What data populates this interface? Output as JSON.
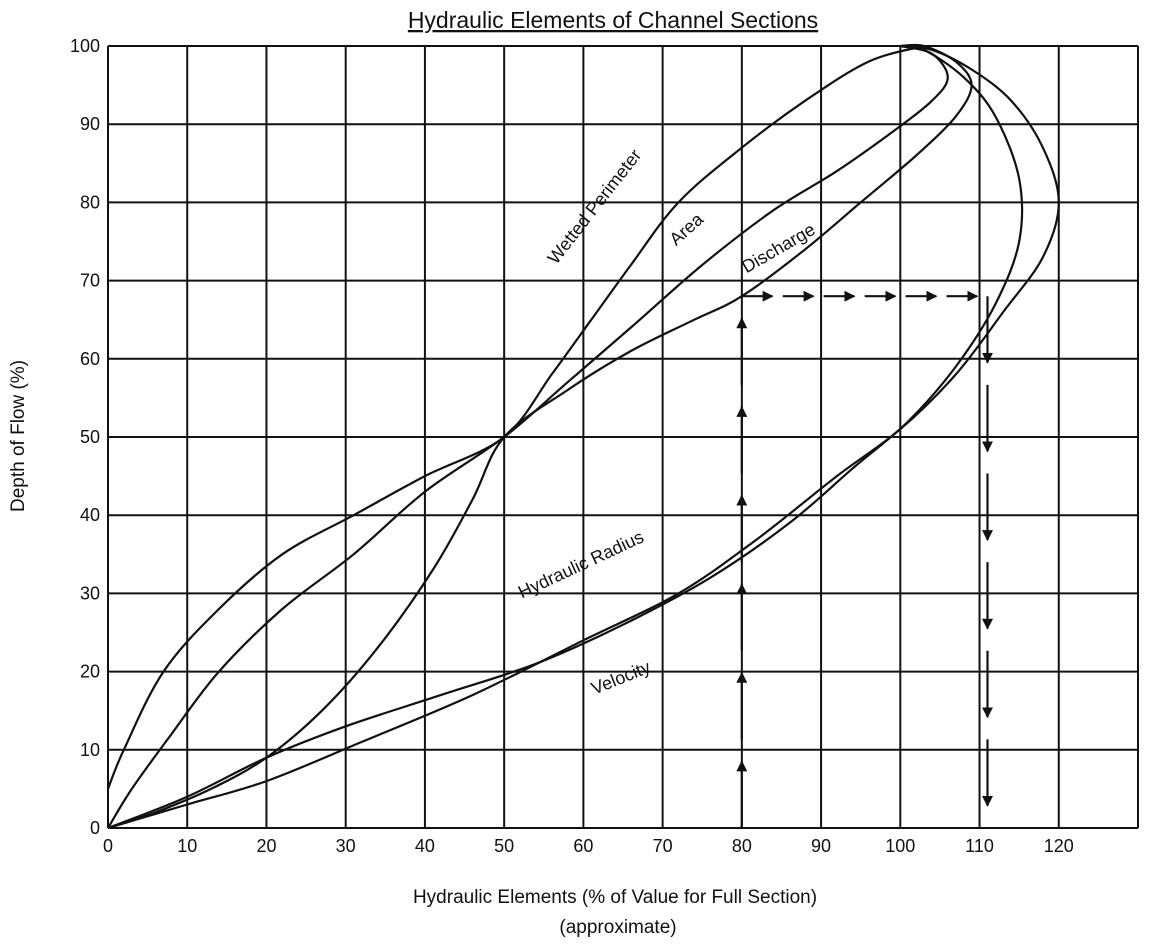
{
  "chart_data": {
    "type": "line",
    "title": "Hydraulic Elements of Channel Sections",
    "xlabel": "Hydraulic Elements (% of Value for Full Section)",
    "xlabel_note": "(approximate)",
    "ylabel": "Depth of Flow (%)",
    "xlim": [
      0,
      130
    ],
    "ylim": [
      0,
      100
    ],
    "x_ticks": [
      0,
      10,
      20,
      30,
      40,
      50,
      60,
      70,
      80,
      90,
      100,
      110,
      120
    ],
    "y_ticks": [
      0,
      10,
      20,
      30,
      40,
      50,
      60,
      70,
      80,
      90,
      100
    ],
    "grid": true,
    "series": [
      {
        "name": "Wetted Perimeter",
        "points": [
          [
            0,
            5
          ],
          [
            2,
            10
          ],
          [
            7,
            20
          ],
          [
            14,
            28
          ],
          [
            22,
            35
          ],
          [
            31,
            40
          ],
          [
            40,
            45
          ],
          [
            50,
            50
          ],
          [
            56,
            58
          ],
          [
            61,
            65
          ],
          [
            66,
            72
          ],
          [
            72,
            80
          ],
          [
            80,
            87
          ],
          [
            88,
            93
          ],
          [
            96,
            98
          ],
          [
            103,
            100
          ]
        ]
      },
      {
        "name": "Area",
        "points": [
          [
            0,
            0
          ],
          [
            3,
            5
          ],
          [
            8,
            12
          ],
          [
            14,
            20
          ],
          [
            22,
            28
          ],
          [
            31,
            35
          ],
          [
            40,
            43
          ],
          [
            50,
            50
          ],
          [
            58,
            57
          ],
          [
            66,
            64
          ],
          [
            75,
            72
          ],
          [
            84,
            79
          ],
          [
            92,
            84
          ],
          [
            99,
            89
          ],
          [
            104,
            93
          ],
          [
            106,
            96
          ],
          [
            104,
            99
          ],
          [
            100,
            100
          ]
        ]
      },
      {
        "name": "Discharge",
        "points": [
          [
            0,
            0
          ],
          [
            6,
            2
          ],
          [
            13,
            5
          ],
          [
            20,
            9
          ],
          [
            27,
            15
          ],
          [
            34,
            23
          ],
          [
            41,
            33
          ],
          [
            46,
            42
          ],
          [
            50,
            50
          ],
          [
            58,
            56
          ],
          [
            66,
            61
          ],
          [
            74,
            65
          ],
          [
            80,
            68
          ],
          [
            88,
            74
          ],
          [
            95,
            80
          ],
          [
            102,
            86
          ],
          [
            107,
            91
          ],
          [
            109,
            95
          ],
          [
            107,
            98
          ],
          [
            103,
            100
          ],
          [
            100,
            100
          ]
        ]
      },
      {
        "name": "Hydraulic Radius",
        "points": [
          [
            0,
            0
          ],
          [
            10,
            3
          ],
          [
            20,
            6
          ],
          [
            32,
            11
          ],
          [
            46,
            17
          ],
          [
            60,
            24
          ],
          [
            72,
            30
          ],
          [
            82,
            37
          ],
          [
            92,
            45
          ],
          [
            100,
            51
          ],
          [
            107,
            58
          ],
          [
            113,
            66
          ],
          [
            118,
            73
          ],
          [
            120,
            80
          ],
          [
            118,
            87
          ],
          [
            114,
            93
          ],
          [
            109,
            97
          ],
          [
            104,
            99.5
          ],
          [
            100,
            100
          ]
        ]
      },
      {
        "name": "Velocity",
        "points": [
          [
            0,
            0
          ],
          [
            10,
            4
          ],
          [
            20,
            9
          ],
          [
            30,
            13
          ],
          [
            42,
            17
          ],
          [
            54,
            21
          ],
          [
            65,
            26
          ],
          [
            76,
            32
          ],
          [
            86,
            39
          ],
          [
            94,
            46
          ],
          [
            101,
            52
          ],
          [
            107,
            59
          ],
          [
            112,
            67
          ],
          [
            115,
            75
          ],
          [
            115,
            83
          ],
          [
            112,
            91
          ],
          [
            108,
            96
          ],
          [
            103,
            99.5
          ],
          [
            100,
            100
          ]
        ]
      }
    ],
    "annotations": [
      {
        "text": "Wetted Perimeter",
        "x": 62,
        "y": 79,
        "angle": -52
      },
      {
        "text": "Area",
        "x": 73.5,
        "y": 76,
        "angle": -42
      },
      {
        "text": "Discharge",
        "x": 85,
        "y": 73.5,
        "angle": -30
      },
      {
        "text": "Hydraulic Radius",
        "x": 60,
        "y": 33,
        "angle": -25
      },
      {
        "text": "Velocity",
        "x": 65,
        "y": 18.5,
        "angle": -22
      }
    ],
    "example_path": {
      "points": [
        [
          80,
          0
        ],
        [
          80,
          68
        ],
        [
          111,
          68
        ],
        [
          111,
          0
        ]
      ],
      "description_values": {
        "start_x": 80,
        "depth": 68,
        "end_x": 111
      }
    }
  }
}
